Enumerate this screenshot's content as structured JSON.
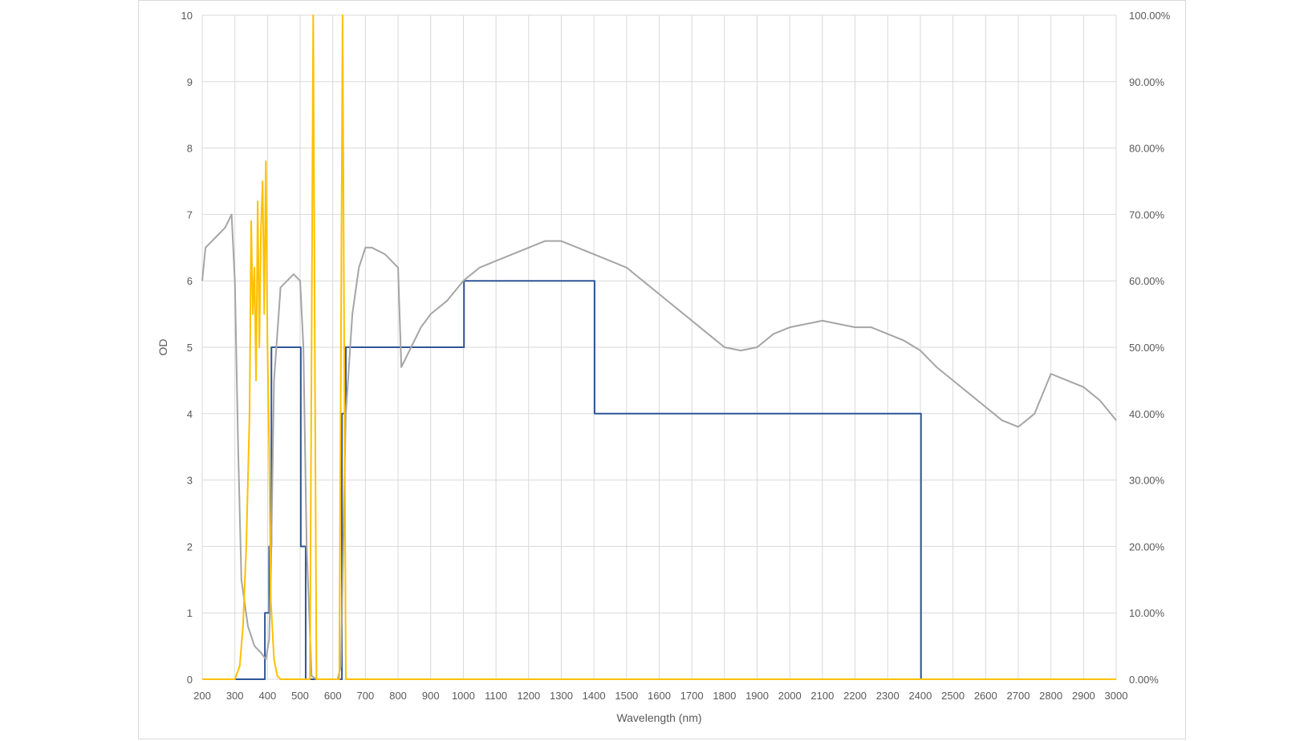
{
  "chart_data": {
    "type": "line",
    "title": "",
    "xlabel": "Wavelength (nm)",
    "ylabel": "OD",
    "y2label": "",
    "xlim": [
      200,
      3000
    ],
    "ylim": [
      0,
      10
    ],
    "y2lim": [
      0,
      1
    ],
    "grid": true,
    "legend": "none",
    "x_ticks": [
      "200",
      "300",
      "400",
      "500",
      "600",
      "700",
      "800",
      "900",
      "1000",
      "1100",
      "1200",
      "1300",
      "1400",
      "1500",
      "1600",
      "1700",
      "1800",
      "1900",
      "2000",
      "2100",
      "2200",
      "2300",
      "2400",
      "2500",
      "2600",
      "2700",
      "2800",
      "2900",
      "3000"
    ],
    "y_ticks": [
      "0",
      "1",
      "2",
      "3",
      "4",
      "5",
      "6",
      "7",
      "8",
      "9",
      "10"
    ],
    "y2_ticks": [
      "0.00%",
      "10.00%",
      "20.00%",
      "30.00%",
      "40.00%",
      "50.00%",
      "60.00%",
      "70.00%",
      "80.00%",
      "90.00%",
      "100.00%"
    ],
    "series": [
      {
        "color": "#2f5597",
        "axis": "left",
        "step": true,
        "x": [
          200,
          390,
          392,
          400,
          405,
          410,
          412,
          500,
          502,
          515,
          517,
          530,
          532,
          625,
          628,
          635,
          640,
          1000,
          1002,
          1020,
          1022,
          1400,
          1402,
          2400,
          2402
        ],
        "y": [
          0,
          0,
          1,
          1,
          2,
          2,
          5,
          5,
          2,
          2,
          0,
          0,
          0,
          0,
          4,
          4,
          5,
          5,
          6,
          6,
          6,
          6,
          4,
          4,
          0
        ]
      },
      {
        "color": "#a5a5a5",
        "axis": "left",
        "x": [
          200,
          210,
          230,
          250,
          270,
          290,
          300,
          310,
          320,
          340,
          360,
          380,
          395,
          405,
          410,
          420,
          440,
          460,
          480,
          500,
          510,
          520,
          535,
          550,
          600,
          615,
          625,
          630,
          640,
          660,
          680,
          700,
          720,
          760,
          800,
          810,
          840,
          870,
          900,
          950,
          1000,
          1050,
          1100,
          1150,
          1200,
          1250,
          1300,
          1350,
          1400,
          1450,
          1500,
          1550,
          1600,
          1650,
          1700,
          1750,
          1800,
          1850,
          1900,
          1950,
          2000,
          2050,
          2100,
          2150,
          2200,
          2250,
          2300,
          2350,
          2400,
          2450,
          2500,
          2550,
          2600,
          2650,
          2700,
          2750,
          2800,
          2850,
          2900,
          2950,
          3000
        ],
        "y": [
          6.0,
          6.5,
          6.6,
          6.7,
          6.8,
          7.0,
          6.0,
          3.5,
          1.5,
          0.8,
          0.5,
          0.4,
          0.3,
          0.6,
          1.5,
          4.5,
          5.9,
          6.0,
          6.1,
          6.0,
          5.0,
          2.0,
          0.05,
          0.0,
          0.0,
          0.0,
          0.2,
          1.5,
          4.0,
          5.5,
          6.2,
          6.5,
          6.5,
          6.4,
          6.2,
          4.7,
          5.0,
          5.3,
          5.5,
          5.7,
          6.0,
          6.2,
          6.3,
          6.4,
          6.5,
          6.6,
          6.6,
          6.5,
          6.4,
          6.3,
          6.2,
          6.0,
          5.8,
          5.6,
          5.4,
          5.2,
          5.0,
          4.95,
          5.0,
          5.2,
          5.3,
          5.35,
          5.4,
          5.35,
          5.3,
          5.3,
          5.2,
          5.1,
          4.95,
          4.7,
          4.5,
          4.3,
          4.1,
          3.9,
          3.8,
          4.0,
          4.6,
          4.5,
          4.4,
          4.2,
          3.9
        ]
      },
      {
        "color": "#ffc000",
        "axis": "left",
        "x": [
          200,
          300,
          315,
          325,
          335,
          345,
          350,
          355,
          360,
          365,
          370,
          375,
          380,
          385,
          390,
          395,
          400,
          405,
          410,
          420,
          430,
          440,
          530,
          535,
          540,
          545,
          550,
          560,
          620,
          625,
          630,
          635,
          640,
          660,
          3000
        ],
        "y": [
          0,
          0,
          0.2,
          0.8,
          2.0,
          4.0,
          6.9,
          5.5,
          6.2,
          4.5,
          7.2,
          5.0,
          6.8,
          7.5,
          5.5,
          7.8,
          5.0,
          3.5,
          1.2,
          0.3,
          0.05,
          0,
          0,
          5,
          10,
          5,
          0,
          0,
          0,
          5,
          10,
          5,
          0,
          0,
          0
        ]
      }
    ]
  }
}
